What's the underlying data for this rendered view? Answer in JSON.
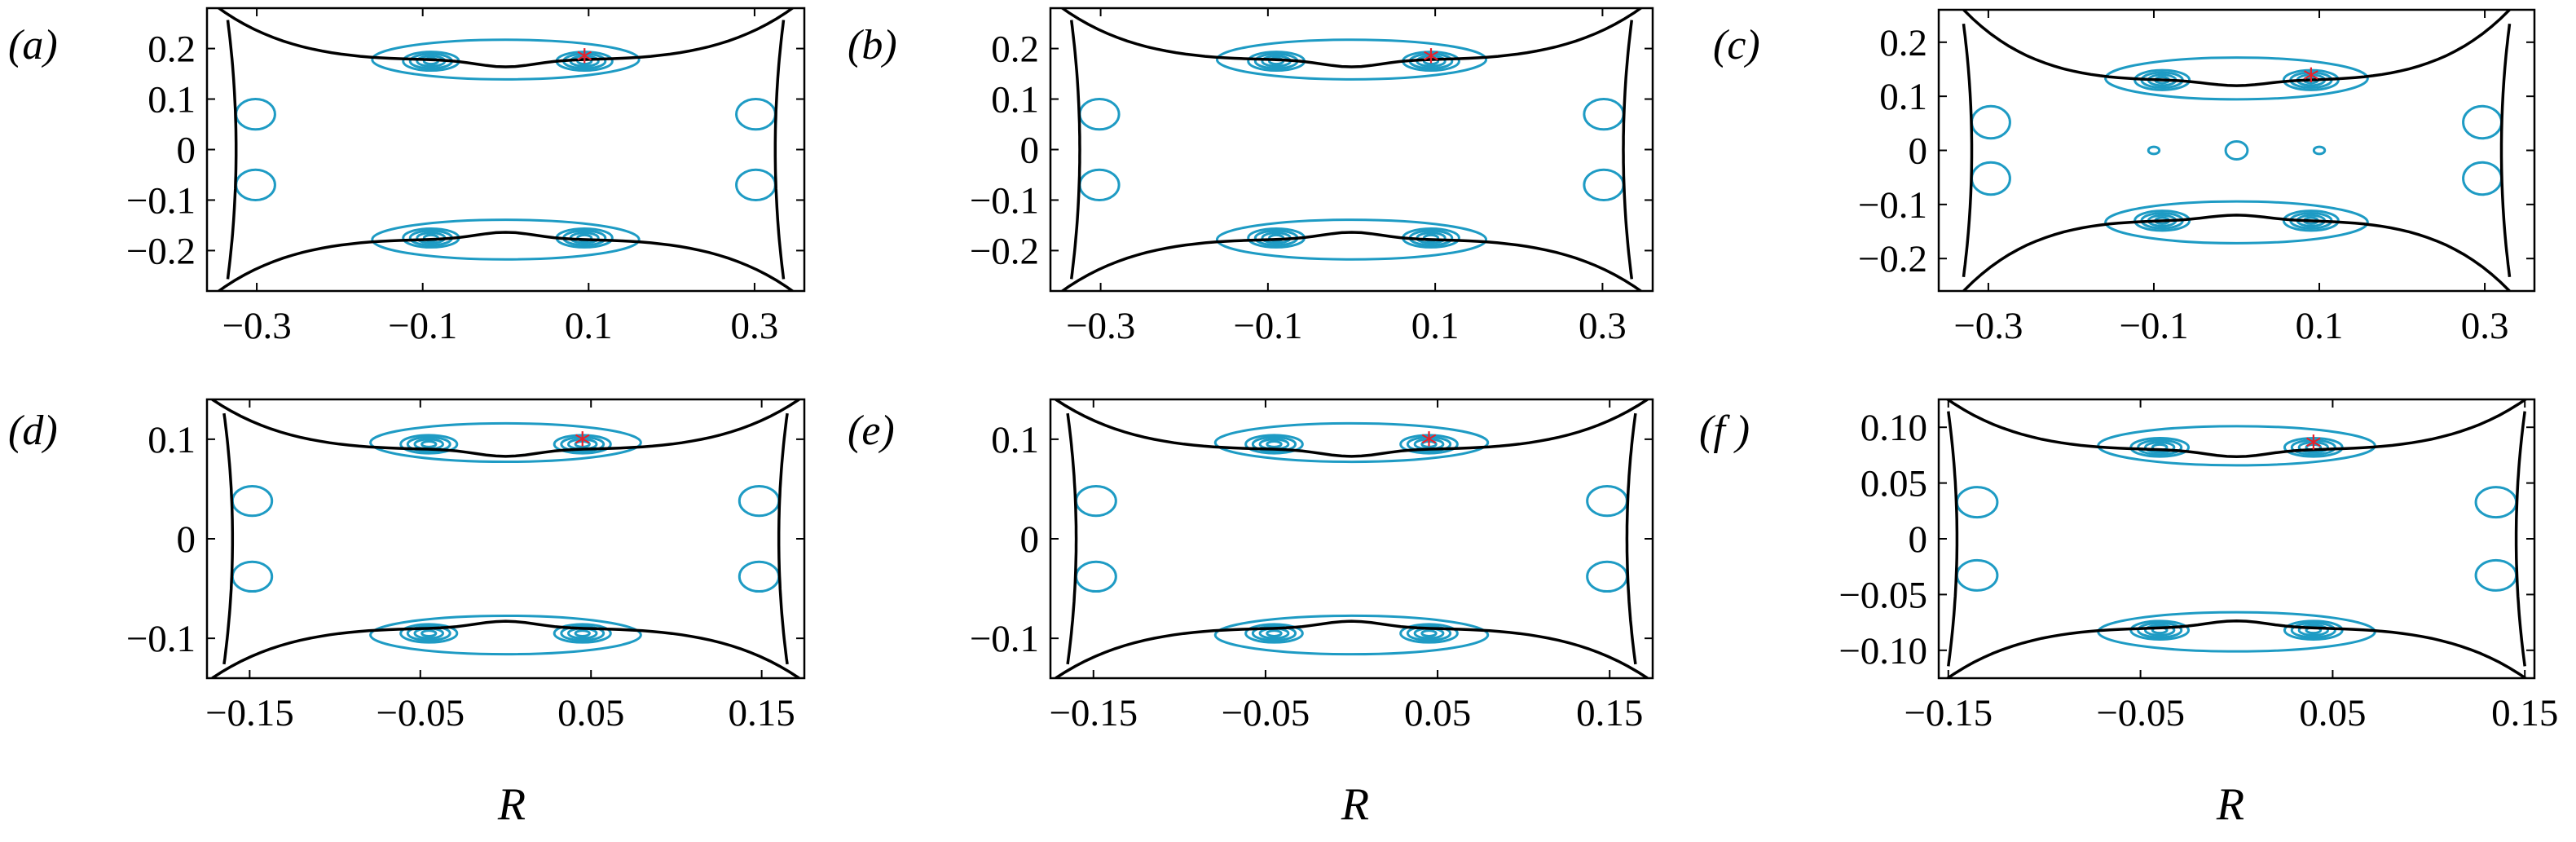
{
  "figure": {
    "xlabel": "R",
    "contour_color": "#1e9bc4",
    "boundary_color": "#000000",
    "marker_color": "#e8202a"
  },
  "chart_data": [
    {
      "type": "contour",
      "panel": "(a)",
      "xlim": [
        -0.36,
        0.36
      ],
      "ylim": [
        -0.28,
        0.28
      ],
      "xticks": [
        -0.3,
        -0.1,
        0.1,
        0.3
      ],
      "xtick_labels": [
        "−0.3",
        "−0.1",
        "0.1",
        "0.3"
      ],
      "yticks": [
        0.2,
        0.1,
        0,
        -0.1,
        -0.2
      ],
      "ytick_labels": [
        "0.2",
        "0.1",
        "0",
        "−0.1",
        "−0.2"
      ],
      "centers": [
        [
          -0.09,
          0.175
        ],
        [
          0.095,
          0.175
        ]
      ],
      "marker": [
        0.095,
        0.175
      ],
      "boundary": {
        "half_width": 0.335,
        "y_center": 0.178,
        "y_end": 0.285,
        "x_in": 0.28,
        "x_out": 0.35
      },
      "show_xlabel": false
    },
    {
      "type": "contour",
      "panel": "(b)",
      "xlim": [
        -0.36,
        0.36
      ],
      "ylim": [
        -0.28,
        0.28
      ],
      "xticks": [
        -0.3,
        -0.1,
        0.1,
        0.3
      ],
      "xtick_labels": [
        "−0.3",
        "−0.1",
        "0.1",
        "0.3"
      ],
      "yticks": [
        0.2,
        0.1,
        0,
        -0.1,
        -0.2
      ],
      "ytick_labels": [
        "0.2",
        "0.1",
        "0",
        "−0.1",
        "−0.2"
      ],
      "centers": [
        [
          -0.09,
          0.175
        ],
        [
          0.095,
          0.175
        ]
      ],
      "marker": [
        0.095,
        0.175
      ],
      "boundary": {
        "half_width": 0.335,
        "y_center": 0.178,
        "y_end": 0.285,
        "x_in": 0.28,
        "x_out": 0.35
      },
      "show_xlabel": false
    },
    {
      "type": "contour",
      "panel": "(c)",
      "xlim": [
        -0.36,
        0.36
      ],
      "ylim": [
        -0.26,
        0.26
      ],
      "xticks": [
        -0.3,
        -0.1,
        0.1,
        0.3
      ],
      "xtick_labels": [
        "−0.3",
        "−0.1",
        "0.1",
        "0.3"
      ],
      "yticks": [
        0.2,
        0.1,
        0,
        -0.1,
        -0.2
      ],
      "ytick_labels": [
        "0.2",
        "0.1",
        "0",
        "−0.1",
        "−0.2"
      ],
      "centers": [
        [
          -0.09,
          0.13
        ],
        [
          0.09,
          0.13
        ]
      ],
      "marker": [
        0.09,
        0.13
      ],
      "boundary": {
        "half_width": 0.33,
        "y_center": 0.13,
        "y_end": 0.26,
        "x_in": 0.25,
        "x_out": 0.33
      },
      "show_xlabel": false
    },
    {
      "type": "contour",
      "panel": "(d)",
      "xlim": [
        -0.175,
        0.175
      ],
      "ylim": [
        -0.14,
        0.14
      ],
      "xticks": [
        -0.15,
        -0.05,
        0.05,
        0.15
      ],
      "xtick_labels": [
        "−0.15",
        "−0.05",
        "0.05",
        "0.15"
      ],
      "yticks": [
        0.1,
        0,
        -0.1
      ],
      "ytick_labels": [
        "0.1",
        "0",
        "−0.1"
      ],
      "centers": [
        [
          -0.045,
          0.095
        ],
        [
          0.045,
          0.095
        ]
      ],
      "marker": [
        0.045,
        0.095
      ],
      "boundary": {
        "half_width": 0.165,
        "y_center": 0.09,
        "y_end": 0.14,
        "x_in": 0.14,
        "x_out": 0.172
      },
      "show_xlabel": true
    },
    {
      "type": "contour",
      "panel": "(e)",
      "xlim": [
        -0.175,
        0.175
      ],
      "ylim": [
        -0.14,
        0.14
      ],
      "xticks": [
        -0.15,
        -0.05,
        0.05,
        0.15
      ],
      "xtick_labels": [
        "−0.15",
        "−0.05",
        "0.05",
        "0.15"
      ],
      "yticks": [
        0.1,
        0,
        -0.1
      ],
      "ytick_labels": [
        "0.1",
        "0",
        "−0.1"
      ],
      "centers": [
        [
          -0.045,
          0.095
        ],
        [
          0.045,
          0.095
        ]
      ],
      "marker": [
        0.045,
        0.095
      ],
      "boundary": {
        "half_width": 0.165,
        "y_center": 0.09,
        "y_end": 0.14,
        "x_in": 0.14,
        "x_out": 0.172
      },
      "show_xlabel": true
    },
    {
      "type": "contour",
      "panel": "(f )",
      "xlim": [
        -0.155,
        0.155
      ],
      "ylim": [
        -0.125,
        0.125
      ],
      "xticks": [
        -0.15,
        -0.05,
        0.05,
        0.15
      ],
      "xtick_labels": [
        "−0.15",
        "−0.05",
        "0.05",
        "0.15"
      ],
      "yticks": [
        0.1,
        0.05,
        0,
        -0.05,
        -0.1
      ],
      "ytick_labels": [
        "0.10",
        "0.05",
        "0",
        "−0.05",
        "−0.10"
      ],
      "centers": [
        [
          -0.04,
          0.082
        ],
        [
          0.04,
          0.082
        ]
      ],
      "marker": [
        0.04,
        0.082
      ],
      "boundary": {
        "half_width": 0.15,
        "y_center": 0.08,
        "y_end": 0.127,
        "x_in": 0.125,
        "x_out": 0.152
      },
      "show_xlabel": true
    }
  ]
}
